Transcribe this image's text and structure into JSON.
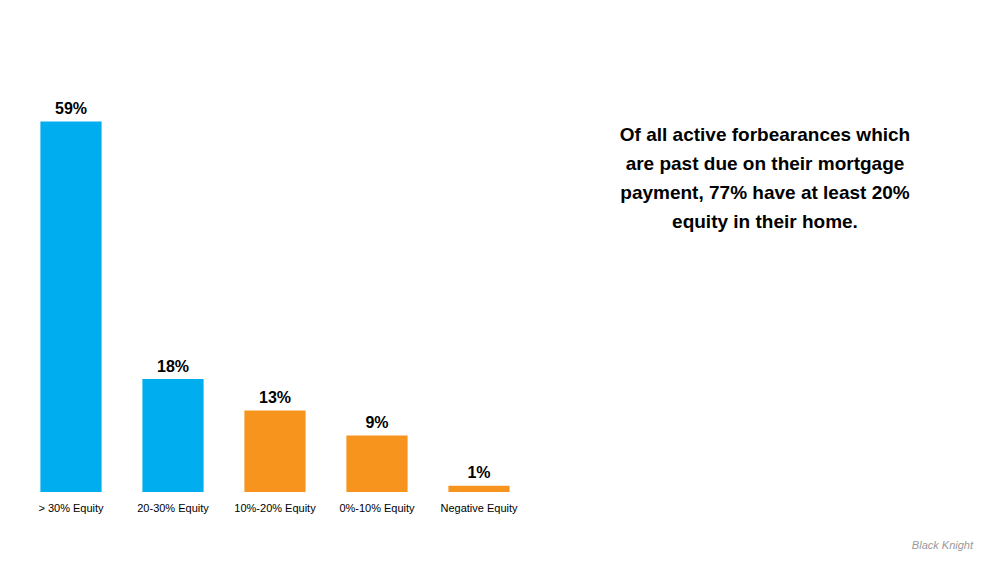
{
  "chart_data": {
    "type": "bar",
    "categories": [
      "> 30% Equity",
      "20-30% Equity",
      "10%-20% Equity",
      "0%-10% Equity",
      "Negative Equity"
    ],
    "values": [
      59,
      18,
      13,
      9,
      1
    ],
    "value_labels": [
      "59%",
      "18%",
      "13%",
      "9%",
      "1%"
    ],
    "colors": [
      "#00AEEF",
      "#00AEEF",
      "#F7941D",
      "#F7941D",
      "#F7941D"
    ],
    "data_labels": true,
    "ylim": [
      0,
      72
    ],
    "tick_labels": "x",
    "grid": false,
    "annotations": [
      "Of all active forbearances which\nare past due on their mortgage\npayment, 77% have at least 20%\nequity in their home.",
      "Black Knight"
    ]
  }
}
